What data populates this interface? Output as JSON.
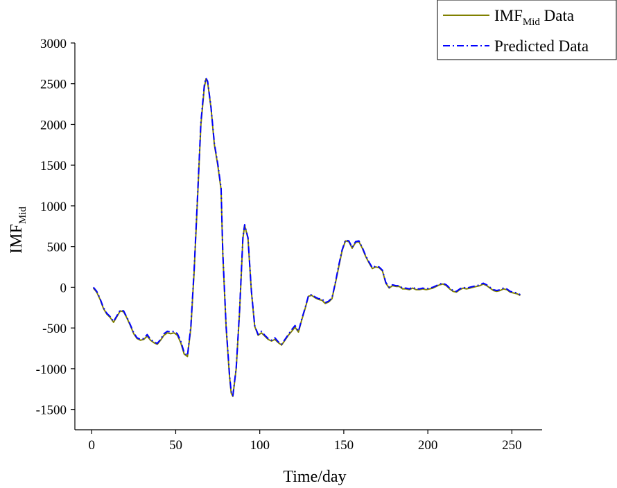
{
  "chart_data": {
    "type": "line",
    "xlabel": "Time/day",
    "ylabel": {
      "main": "IMF",
      "sub": "Mid"
    },
    "xlim": [
      -10,
      268
    ],
    "ylim": [
      -1750,
      3000
    ],
    "x_ticks": [
      0,
      50,
      100,
      150,
      200,
      250
    ],
    "y_ticks": [
      -1500,
      -1000,
      -500,
      0,
      500,
      1000,
      1500,
      2000,
      2500,
      3000
    ],
    "grid": false,
    "legend_position": "top-right",
    "series": [
      {
        "name": {
          "main": "IMF",
          "sub": "Mid",
          "suffix": " Data"
        },
        "color": "#808000",
        "style": "solid",
        "points": [
          [
            1,
            -10
          ],
          [
            3,
            -60
          ],
          [
            5,
            -150
          ],
          [
            7,
            -260
          ],
          [
            9,
            -330
          ],
          [
            11,
            -370
          ],
          [
            13,
            -430
          ],
          [
            15,
            -360
          ],
          [
            17,
            -290
          ],
          [
            19,
            -300
          ],
          [
            21,
            -380
          ],
          [
            23,
            -470
          ],
          [
            25,
            -570
          ],
          [
            27,
            -630
          ],
          [
            29,
            -650
          ],
          [
            31,
            -640
          ],
          [
            33,
            -600
          ],
          [
            35,
            -650
          ],
          [
            37,
            -680
          ],
          [
            39,
            -700
          ],
          [
            41,
            -650
          ],
          [
            43,
            -590
          ],
          [
            45,
            -560
          ],
          [
            47,
            -570
          ],
          [
            49,
            -560
          ],
          [
            51,
            -590
          ],
          [
            53,
            -680
          ],
          [
            55,
            -820
          ],
          [
            57,
            -850
          ],
          [
            59,
            -500
          ],
          [
            61,
            200
          ],
          [
            63,
            1100
          ],
          [
            65,
            2000
          ],
          [
            67,
            2450
          ],
          [
            68,
            2560
          ],
          [
            69,
            2520
          ],
          [
            71,
            2200
          ],
          [
            73,
            1750
          ],
          [
            75,
            1500
          ],
          [
            77,
            1200
          ],
          [
            78,
            400
          ],
          [
            80,
            -500
          ],
          [
            82,
            -1100
          ],
          [
            83,
            -1300
          ],
          [
            84,
            -1340
          ],
          [
            86,
            -1000
          ],
          [
            88,
            -300
          ],
          [
            90,
            600
          ],
          [
            91,
            760
          ],
          [
            93,
            600
          ],
          [
            95,
            -50
          ],
          [
            97,
            -480
          ],
          [
            99,
            -590
          ],
          [
            101,
            -560
          ],
          [
            103,
            -600
          ],
          [
            105,
            -640
          ],
          [
            107,
            -660
          ],
          [
            109,
            -640
          ],
          [
            111,
            -680
          ],
          [
            113,
            -710
          ],
          [
            115,
            -650
          ],
          [
            117,
            -590
          ],
          [
            119,
            -540
          ],
          [
            121,
            -490
          ],
          [
            123,
            -550
          ],
          [
            125,
            -400
          ],
          [
            127,
            -260
          ],
          [
            129,
            -110
          ],
          [
            131,
            -100
          ],
          [
            133,
            -130
          ],
          [
            135,
            -150
          ],
          [
            137,
            -160
          ],
          [
            139,
            -200
          ],
          [
            141,
            -180
          ],
          [
            143,
            -140
          ],
          [
            145,
            50
          ],
          [
            147,
            250
          ],
          [
            149,
            450
          ],
          [
            151,
            570
          ],
          [
            153,
            560
          ],
          [
            155,
            480
          ],
          [
            157,
            550
          ],
          [
            159,
            560
          ],
          [
            161,
            480
          ],
          [
            163,
            380
          ],
          [
            165,
            300
          ],
          [
            167,
            230
          ],
          [
            169,
            250
          ],
          [
            171,
            240
          ],
          [
            173,
            200
          ],
          [
            175,
            50
          ],
          [
            177,
            -10
          ],
          [
            179,
            20
          ],
          [
            181,
            10
          ],
          [
            183,
            10
          ],
          [
            185,
            -20
          ],
          [
            187,
            -20
          ],
          [
            189,
            -30
          ],
          [
            191,
            -10
          ],
          [
            193,
            -30
          ],
          [
            195,
            -30
          ],
          [
            197,
            -20
          ],
          [
            199,
            -30
          ],
          [
            201,
            -20
          ],
          [
            203,
            -10
          ],
          [
            205,
            10
          ],
          [
            207,
            30
          ],
          [
            209,
            40
          ],
          [
            211,
            20
          ],
          [
            213,
            -20
          ],
          [
            215,
            -50
          ],
          [
            217,
            -60
          ],
          [
            219,
            -30
          ],
          [
            221,
            -10
          ],
          [
            223,
            -20
          ],
          [
            225,
            -10
          ],
          [
            227,
            0
          ],
          [
            229,
            10
          ],
          [
            231,
            20
          ],
          [
            233,
            40
          ],
          [
            235,
            20
          ],
          [
            237,
            -10
          ],
          [
            239,
            -40
          ],
          [
            241,
            -50
          ],
          [
            243,
            -40
          ],
          [
            245,
            -20
          ],
          [
            247,
            -30
          ],
          [
            249,
            -60
          ],
          [
            251,
            -70
          ],
          [
            253,
            -80
          ],
          [
            255,
            -100
          ]
        ]
      },
      {
        "name": "Predicted Data",
        "color": "#0000ff",
        "style": "dashdot",
        "points": [
          [
            1,
            0
          ],
          [
            3,
            -50
          ],
          [
            5,
            -140
          ],
          [
            7,
            -250
          ],
          [
            9,
            -320
          ],
          [
            11,
            -360
          ],
          [
            13,
            -420
          ],
          [
            15,
            -350
          ],
          [
            17,
            -280
          ],
          [
            19,
            -290
          ],
          [
            21,
            -370
          ],
          [
            23,
            -460
          ],
          [
            25,
            -560
          ],
          [
            27,
            -620
          ],
          [
            29,
            -640
          ],
          [
            31,
            -630
          ],
          [
            33,
            -580
          ],
          [
            35,
            -640
          ],
          [
            37,
            -670
          ],
          [
            39,
            -690
          ],
          [
            41,
            -640
          ],
          [
            43,
            -570
          ],
          [
            45,
            -540
          ],
          [
            47,
            -550
          ],
          [
            49,
            -540
          ],
          [
            51,
            -570
          ],
          [
            53,
            -660
          ],
          [
            55,
            -800
          ],
          [
            57,
            -840
          ],
          [
            59,
            -480
          ],
          [
            61,
            230
          ],
          [
            63,
            1130
          ],
          [
            65,
            2030
          ],
          [
            67,
            2480
          ],
          [
            68,
            2570
          ],
          [
            69,
            2530
          ],
          [
            71,
            2210
          ],
          [
            73,
            1770
          ],
          [
            75,
            1520
          ],
          [
            77,
            1220
          ],
          [
            78,
            420
          ],
          [
            80,
            -480
          ],
          [
            82,
            -1080
          ],
          [
            83,
            -1280
          ],
          [
            84,
            -1330
          ],
          [
            86,
            -990
          ],
          [
            88,
            -280
          ],
          [
            90,
            620
          ],
          [
            91,
            770
          ],
          [
            93,
            610
          ],
          [
            95,
            -40
          ],
          [
            97,
            -470
          ],
          [
            99,
            -580
          ],
          [
            101,
            -540
          ],
          [
            103,
            -590
          ],
          [
            105,
            -630
          ],
          [
            107,
            -650
          ],
          [
            109,
            -620
          ],
          [
            111,
            -670
          ],
          [
            113,
            -700
          ],
          [
            115,
            -640
          ],
          [
            117,
            -580
          ],
          [
            119,
            -520
          ],
          [
            121,
            -470
          ],
          [
            123,
            -540
          ],
          [
            125,
            -390
          ],
          [
            127,
            -250
          ],
          [
            129,
            -100
          ],
          [
            131,
            -90
          ],
          [
            133,
            -120
          ],
          [
            135,
            -140
          ],
          [
            137,
            -140
          ],
          [
            139,
            -190
          ],
          [
            141,
            -170
          ],
          [
            143,
            -130
          ],
          [
            145,
            60
          ],
          [
            147,
            270
          ],
          [
            149,
            460
          ],
          [
            151,
            580
          ],
          [
            153,
            570
          ],
          [
            155,
            490
          ],
          [
            157,
            560
          ],
          [
            159,
            570
          ],
          [
            161,
            490
          ],
          [
            163,
            390
          ],
          [
            165,
            310
          ],
          [
            167,
            240
          ],
          [
            169,
            260
          ],
          [
            171,
            250
          ],
          [
            173,
            210
          ],
          [
            175,
            60
          ],
          [
            177,
            0
          ],
          [
            179,
            30
          ],
          [
            181,
            20
          ],
          [
            183,
            20
          ],
          [
            185,
            -10
          ],
          [
            187,
            -10
          ],
          [
            189,
            -20
          ],
          [
            191,
            0
          ],
          [
            193,
            -20
          ],
          [
            195,
            -20
          ],
          [
            197,
            -10
          ],
          [
            199,
            -20
          ],
          [
            201,
            -10
          ],
          [
            203,
            0
          ],
          [
            205,
            20
          ],
          [
            207,
            40
          ],
          [
            209,
            50
          ],
          [
            211,
            30
          ],
          [
            213,
            -10
          ],
          [
            215,
            -40
          ],
          [
            217,
            -50
          ],
          [
            219,
            -20
          ],
          [
            221,
            0
          ],
          [
            223,
            -10
          ],
          [
            225,
            0
          ],
          [
            227,
            10
          ],
          [
            229,
            20
          ],
          [
            231,
            30
          ],
          [
            233,
            50
          ],
          [
            235,
            30
          ],
          [
            237,
            0
          ],
          [
            239,
            -30
          ],
          [
            241,
            -40
          ],
          [
            243,
            -30
          ],
          [
            245,
            -10
          ],
          [
            247,
            -20
          ],
          [
            249,
            -50
          ],
          [
            251,
            -60
          ],
          [
            253,
            -70
          ],
          [
            255,
            -90
          ]
        ]
      }
    ]
  }
}
